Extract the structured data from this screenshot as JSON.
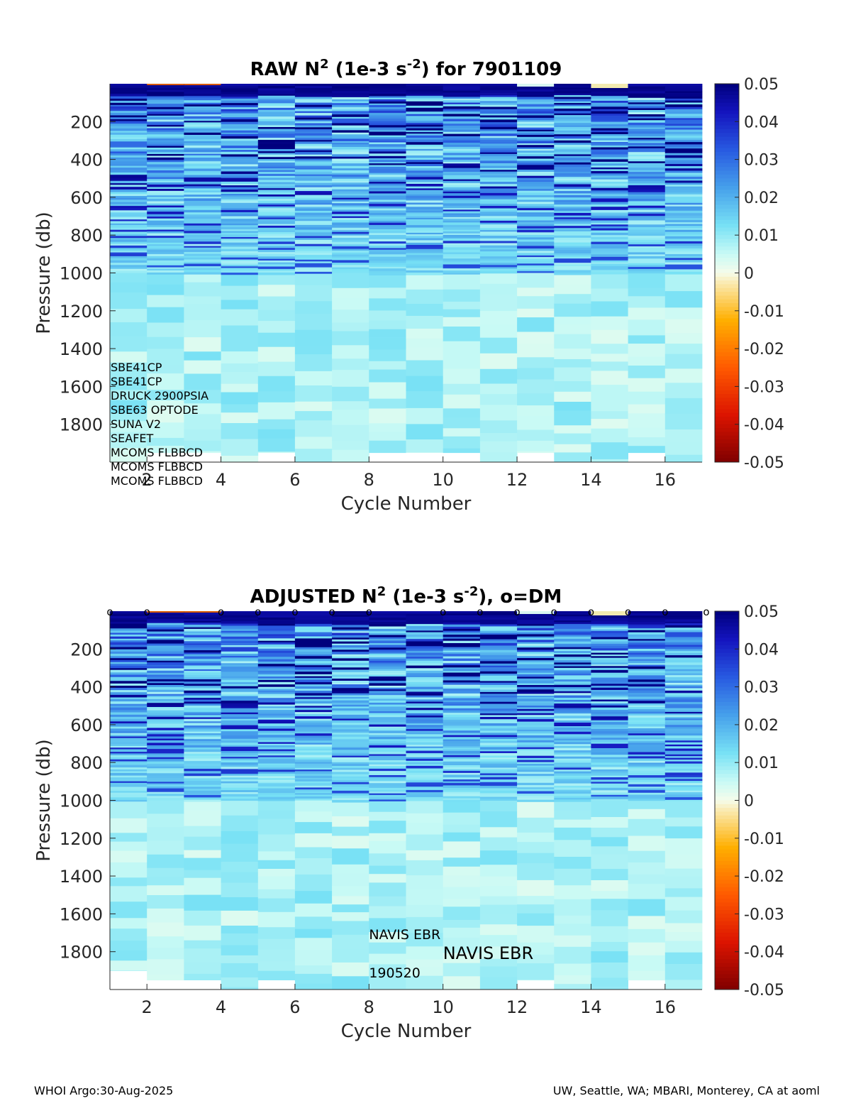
{
  "chart_data": [
    {
      "type": "heatmap",
      "title_parts": [
        "RAW N",
        "2",
        " (1e-3 s",
        "-2",
        ") for 7901109"
      ],
      "xlabel": "Cycle Number",
      "ylabel": "Pressure (db)",
      "xlim": [
        1,
        17
      ],
      "ylim": [
        0,
        2000
      ],
      "x_ticks": [
        "2",
        "4",
        "6",
        "8",
        "10",
        "12",
        "14",
        "16"
      ],
      "y_ticks": [
        "200",
        "400",
        "600",
        "800",
        "1000",
        "1200",
        "1400",
        "1600",
        "1800"
      ],
      "colorbar": {
        "ticks": [
          "0.05",
          "0.04",
          "0.03",
          "0.02",
          "0.01",
          "0",
          "-0.01",
          "-0.02",
          "-0.03",
          "-0.04",
          "-0.05"
        ],
        "clim": [
          -0.05,
          0.05
        ]
      },
      "cycles": [
        1,
        2,
        3,
        4,
        5,
        6,
        7,
        8,
        9,
        10,
        11,
        12,
        13,
        14,
        15,
        16
      ],
      "max_pressure": [
        2000,
        1950,
        1950,
        2000,
        1950,
        2000,
        2000,
        1950,
        1950,
        1950,
        2000,
        1950,
        2000,
        2000,
        1950,
        2000
      ],
      "sensor_labels": [
        "SBE41CP",
        "SBE41CP",
        "DRUCK 2900PSIA",
        "SBE63 OPTODE",
        "SUNA V2",
        "SEAFET",
        "MCOMS FLBBCD",
        "MCOMS FLBBCD",
        "MCOMS FLBBCD"
      ]
    },
    {
      "type": "heatmap",
      "title_parts": [
        "ADJUSTED N",
        "2",
        " (1e-3 s",
        "-2",
        "), o=DM"
      ],
      "xlabel": "Cycle Number",
      "ylabel": "Pressure (db)",
      "xlim": [
        1,
        17
      ],
      "ylim": [
        0,
        2000
      ],
      "x_ticks": [
        "2",
        "4",
        "6",
        "8",
        "10",
        "12",
        "14",
        "16"
      ],
      "y_ticks": [
        "200",
        "400",
        "600",
        "800",
        "1000",
        "1200",
        "1400",
        "1600",
        "1800"
      ],
      "colorbar": {
        "ticks": [
          "0.05",
          "0.04",
          "0.03",
          "0.02",
          "0.01",
          "0",
          "-0.01",
          "-0.02",
          "-0.03",
          "-0.04",
          "-0.05"
        ],
        "clim": [
          -0.05,
          0.05
        ]
      },
      "cycles": [
        1,
        2,
        3,
        4,
        5,
        6,
        7,
        8,
        9,
        10,
        11,
        12,
        13,
        14,
        15,
        16
      ],
      "max_pressure": [
        1900,
        1950,
        1950,
        2000,
        1950,
        2000,
        2000,
        2000,
        2000,
        2000,
        2000,
        1950,
        2000,
        2000,
        1950,
        2000
      ],
      "dm_marker": "o",
      "dm_cycles": [
        1,
        2,
        4,
        5,
        6,
        7,
        8,
        10,
        11,
        12,
        13,
        14,
        15,
        16,
        17
      ],
      "float_labels": [
        "NAVIS EBR",
        "NAVIS EBR",
        "190520"
      ]
    }
  ],
  "footer": {
    "left": "WHOI Argo:30-Aug-2025",
    "right": "UW, Seattle, WA; MBARI, Monterey, CA at aoml"
  },
  "colors": {
    "deep_blue": "#00007f",
    "blue": "#1f3fd9",
    "mid_blue": "#3f7fe6",
    "light_blue": "#7fd4f2",
    "cyan_pale": "#bff7f2",
    "near_zero": "#f2fbe6",
    "orange": "#ff8c1a",
    "red": "#cc1a00",
    "dark_red": "#800000"
  }
}
